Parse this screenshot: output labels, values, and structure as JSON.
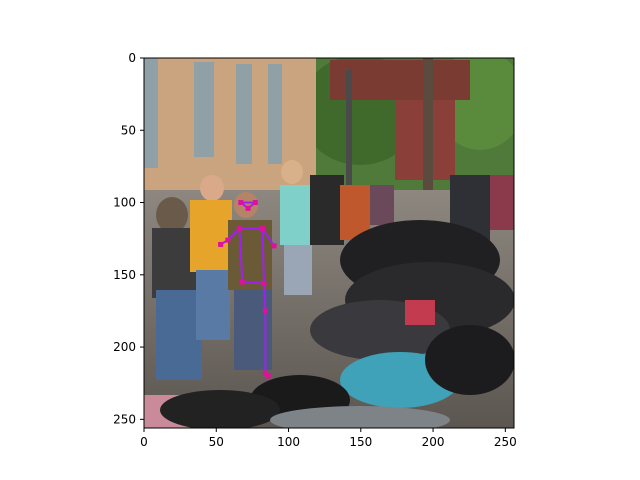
{
  "chart_data": {
    "type": "image",
    "title": "",
    "xlabel": "",
    "ylabel": "",
    "xlim": [
      0,
      256
    ],
    "ylim": [
      256,
      0
    ],
    "y_axis_inverted": true,
    "x_ticks": [
      0,
      50,
      100,
      150,
      200,
      250
    ],
    "y_ticks": [
      0,
      50,
      100,
      150,
      200,
      250
    ],
    "x_tick_labels": [
      "0",
      "50",
      "100",
      "150",
      "200",
      "250"
    ],
    "y_tick_labels": [
      "0",
      "50",
      "100",
      "150",
      "200",
      "250"
    ],
    "grid": false,
    "legend": "none",
    "image_description": "street scene: brick building on left, crowd of people, row of parked motorcycles on right, trees and power pole in background",
    "pose_overlay": {
      "color": "#a020f0",
      "joint_color": "#e0109a",
      "keypoints": {
        "head_left": [
          67,
          100
        ],
        "head_right": [
          77,
          100
        ],
        "neck": [
          72,
          104
        ],
        "shoulder_left": [
          66,
          118
        ],
        "shoulder_right": [
          82,
          118
        ],
        "elbow_left": [
          58,
          126
        ],
        "wrist_left": [
          53,
          129
        ],
        "elbow_right": [
          90,
          130
        ],
        "hip_left": [
          68,
          155
        ],
        "hip_right": [
          83,
          156
        ],
        "knee_right": [
          84,
          175
        ],
        "ankle_right": [
          84,
          218
        ],
        "foot_right": [
          86,
          220
        ]
      },
      "edges": [
        [
          "head_left",
          "head_right"
        ],
        [
          "head_left",
          "neck"
        ],
        [
          "head_right",
          "neck"
        ],
        [
          "shoulder_left",
          "shoulder_right"
        ],
        [
          "shoulder_left",
          "elbow_left"
        ],
        [
          "elbow_left",
          "wrist_left"
        ],
        [
          "shoulder_right",
          "elbow_right"
        ],
        [
          "shoulder_left",
          "hip_left"
        ],
        [
          "shoulder_right",
          "hip_right"
        ],
        [
          "hip_left",
          "hip_right"
        ],
        [
          "hip_right",
          "knee_right"
        ],
        [
          "knee_right",
          "ankle_right"
        ],
        [
          "ankle_right",
          "foot_right"
        ]
      ]
    }
  }
}
